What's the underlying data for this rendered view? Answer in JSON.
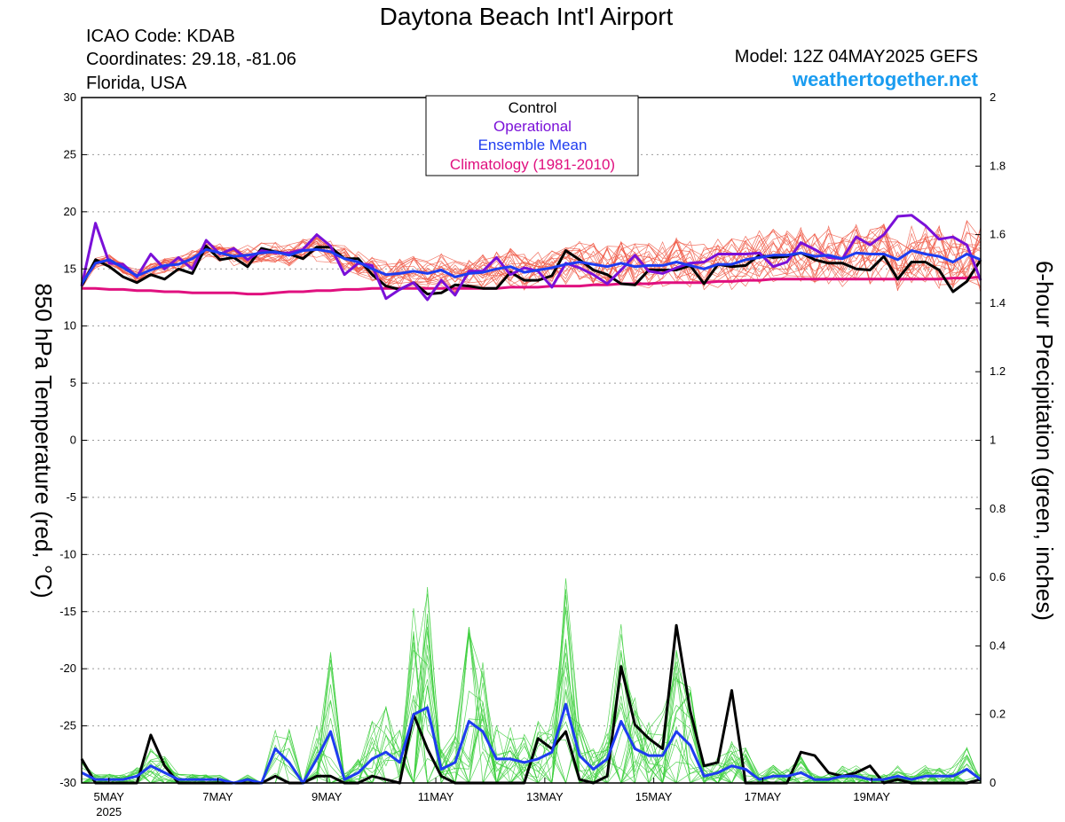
{
  "header": {
    "title": "Daytona Beach Int'l Airport",
    "icao": "ICAO Code: KDAB",
    "coords": "Coordinates: 29.18, -81.06",
    "region": "Florida, USA",
    "model": "Model: 12Z 04MAY2025 GEFS",
    "website": "weathertogether.net"
  },
  "chart_data": {
    "type": "line",
    "ylabel": "850 hPa Temperature (red, °C)",
    "ylabel_right": "6-hour Precipitation (green, inches)",
    "ylim": [
      -30,
      30
    ],
    "ylim_right": [
      0,
      2
    ],
    "yticks": [
      "30",
      "25",
      "20",
      "15",
      "10",
      "5",
      "0",
      "-5",
      "-10",
      "-15",
      "-20",
      "-25",
      "-30"
    ],
    "yticks_right": [
      "2",
      "1.8",
      "1.6",
      "1.4",
      "1.2",
      "1",
      "0.8",
      "0.6",
      "0.4",
      "0.2",
      "0"
    ],
    "xlim_hours": [
      0,
      396
    ],
    "xticks": [
      {
        "label": "5MAY",
        "sublabel": "2025",
        "hour": 12
      },
      {
        "label": "7MAY",
        "hour": 60
      },
      {
        "label": "9MAY",
        "hour": 108
      },
      {
        "label": "11MAY",
        "hour": 156
      },
      {
        "label": "13MAY",
        "hour": 204
      },
      {
        "label": "15MAY",
        "hour": 252
      },
      {
        "label": "17MAY",
        "hour": 300
      },
      {
        "label": "19MAY",
        "hour": 348
      }
    ],
    "legend": [
      "Control",
      "Operational",
      "Ensemble Mean",
      "Climatology (1981-2010)"
    ],
    "colors": {
      "control": "#000000",
      "operational": "#7a10d8",
      "mean": "#1e3cf0",
      "climatology": "#e0107f",
      "members_temp": "#f05a48",
      "members_precip": "#3ccf3c"
    },
    "series": [
      {
        "name": "Control",
        "axis": "left",
        "values": [
          13.5,
          15.8,
          15.2,
          14.3,
          13.8,
          14.5,
          14.1,
          15.0,
          14.6,
          17.0,
          15.8,
          16.0,
          15.2,
          16.8,
          16.5,
          16.3,
          15.9,
          16.9,
          16.9,
          15.9,
          15.9,
          14.5,
          13.5,
          13.2,
          13.8,
          12.8,
          12.9,
          13.6,
          13.5,
          13.3,
          13.3,
          14.7,
          14.0,
          14.0,
          14.4,
          16.6,
          15.8,
          14.9,
          14.5,
          13.7,
          13.6,
          14.9,
          14.9,
          14.9,
          15.3,
          13.7,
          15.4,
          15.2,
          15.3,
          16.2,
          16.0,
          16.1,
          16.4,
          15.8,
          15.5,
          15.5,
          15.0,
          14.9,
          16.1,
          14.1,
          15.6,
          15.6,
          14.9,
          13.0,
          13.9,
          15.8
        ]
      },
      {
        "name": "Operational",
        "axis": "left",
        "values": [
          13.5,
          19.0,
          15.5,
          15.4,
          14.3,
          16.3,
          15.0,
          16.0,
          15.0,
          17.5,
          16.3,
          16.8,
          15.8,
          16.6,
          16.4,
          16.4,
          16.7,
          18.0,
          17.0,
          14.5,
          15.5,
          15.3,
          12.4,
          13.2,
          13.8,
          12.3,
          14.0,
          12.7,
          14.8,
          14.8,
          16.0,
          14.5,
          15.1,
          14.8,
          13.4,
          15.5,
          15.1,
          14.5,
          13.7,
          14.9,
          16.2,
          14.8,
          14.6,
          15.1,
          15.5,
          15.6,
          16.3,
          16.3,
          16.3,
          16.4,
          15.2,
          15.6,
          17.3,
          16.7,
          16.0,
          15.9,
          17.8,
          17.1,
          18.0,
          19.6,
          19.7,
          18.8,
          17.6,
          17.8,
          17.1,
          14.0
        ]
      },
      {
        "name": "Ensemble Mean",
        "axis": "left",
        "values": [
          13.7,
          15.5,
          15.8,
          15.1,
          14.4,
          14.9,
          15.3,
          15.4,
          15.9,
          16.7,
          16.4,
          16.1,
          16.2,
          16.4,
          16.5,
          16.2,
          16.6,
          16.7,
          16.5,
          15.9,
          15.6,
          15.0,
          14.5,
          14.6,
          14.8,
          14.6,
          14.9,
          14.3,
          14.6,
          14.7,
          15.0,
          15.2,
          14.7,
          14.9,
          15.1,
          15.4,
          15.6,
          15.4,
          15.2,
          15.5,
          15.2,
          15.3,
          15.3,
          15.6,
          15.3,
          15.0,
          15.4,
          15.4,
          15.8,
          16.0,
          16.2,
          16.2,
          16.4,
          16.1,
          16.2,
          15.9,
          16.4,
          16.3,
          16.3,
          15.8,
          16.6,
          16.3,
          16.1,
          15.6,
          16.3,
          15.8
        ]
      },
      {
        "name": "Climatology (1981-2010)",
        "axis": "left",
        "values": [
          13.3,
          13.3,
          13.2,
          13.2,
          13.1,
          13.1,
          13.0,
          13.0,
          12.9,
          12.9,
          12.9,
          12.9,
          12.8,
          12.8,
          12.9,
          13.0,
          13.0,
          13.1,
          13.1,
          13.2,
          13.2,
          13.3,
          13.3,
          13.3,
          13.3,
          13.3,
          13.3,
          13.3,
          13.3,
          13.3,
          13.3,
          13.4,
          13.4,
          13.4,
          13.5,
          13.5,
          13.5,
          13.6,
          13.6,
          13.7,
          13.7,
          13.7,
          13.8,
          13.8,
          13.8,
          13.8,
          13.9,
          13.9,
          14.0,
          14.0,
          14.1,
          14.1,
          14.1,
          14.1,
          14.1,
          14.1,
          14.1,
          14.1,
          14.1,
          14.1,
          14.1,
          14.1,
          14.1,
          14.2,
          14.2,
          14.3
        ]
      },
      {
        "name": "Control",
        "axis": "right",
        "values": [
          0.07,
          0,
          0,
          0,
          0,
          0.14,
          0.05,
          0,
          0,
          0,
          0,
          0,
          0,
          0,
          0.02,
          0,
          0,
          0.02,
          0.02,
          0,
          0,
          0.02,
          0.01,
          0,
          0.2,
          0.1,
          0.02,
          0,
          0,
          0,
          0,
          0,
          0,
          0.13,
          0.1,
          0.15,
          0.01,
          0,
          0.02,
          0.34,
          0.17,
          0.13,
          0.1,
          0.46,
          0.21,
          0.05,
          0.06,
          0.27,
          0,
          0,
          0,
          0,
          0.09,
          0.08,
          0.03,
          0.02,
          0.03,
          0.05,
          0,
          0.01,
          0,
          0,
          0,
          0,
          0,
          0.01
        ]
      },
      {
        "name": "Ensemble Mean",
        "axis": "right",
        "values": [
          0.03,
          0.01,
          0.01,
          0.01,
          0.02,
          0.05,
          0.03,
          0.01,
          0.01,
          0.01,
          0.01,
          0,
          0.01,
          0,
          0.1,
          0.06,
          0,
          0.07,
          0.15,
          0.01,
          0.03,
          0.07,
          0.09,
          0.06,
          0.2,
          0.22,
          0.04,
          0.06,
          0.18,
          0.15,
          0.07,
          0.07,
          0.06,
          0.07,
          0.09,
          0.23,
          0.08,
          0.04,
          0.07,
          0.18,
          0.1,
          0.08,
          0.08,
          0.15,
          0.11,
          0.02,
          0.03,
          0.05,
          0.04,
          0.01,
          0.02,
          0.02,
          0.03,
          0.01,
          0.01,
          0.02,
          0.02,
          0.01,
          0.01,
          0.02,
          0.01,
          0.02,
          0.02,
          0.02,
          0.04,
          0.01
        ]
      }
    ]
  }
}
